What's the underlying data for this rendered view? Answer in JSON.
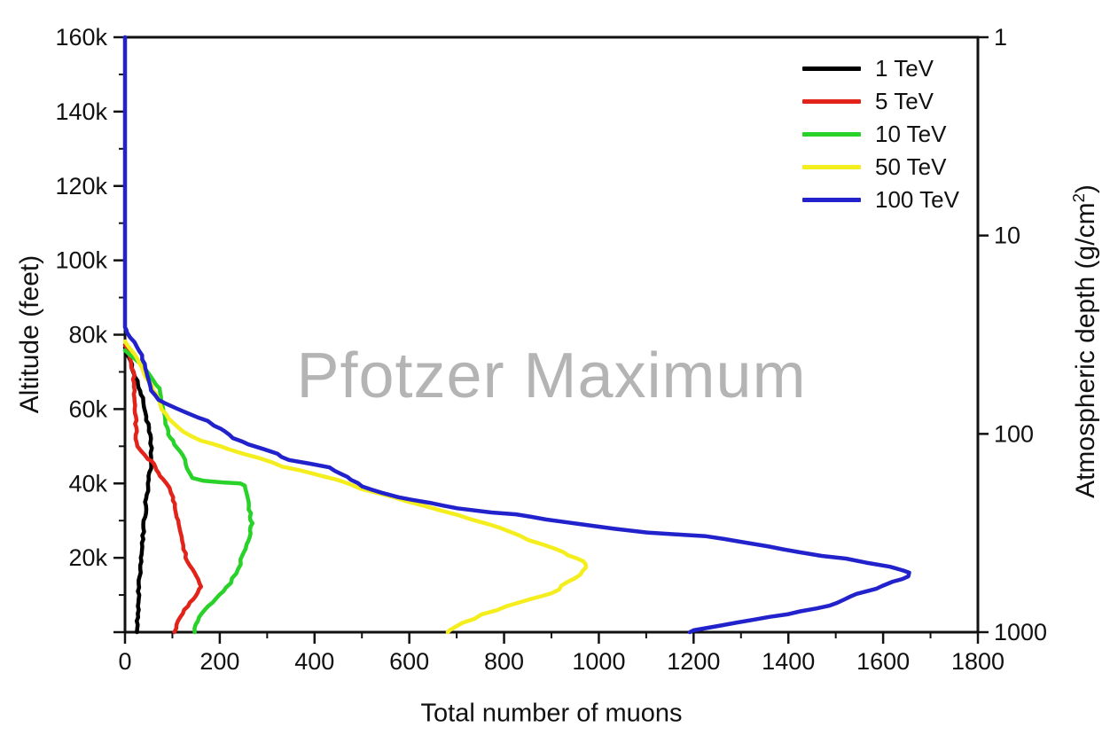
{
  "chart_data": {
    "type": "line",
    "watermark": "Pfotzer Maximum",
    "xlabel": "Total number of muons",
    "ylabel_left": "Altitude (feet)",
    "ylabel_right_prefix": "Atmospheric depth (g/cm",
    "ylabel_right_sup": "2",
    "ylabel_right_suffix": ")",
    "grid": false,
    "legend_position": "top-right",
    "x_axis": {
      "min": 0,
      "max": 1800,
      "major_step": 200,
      "minor_step": 100,
      "tick_labels": [
        "0",
        "200",
        "400",
        "600",
        "800",
        "1000",
        "1200",
        "1400",
        "1600",
        "1800"
      ]
    },
    "y_left_axis": {
      "min": 0,
      "max": 160000,
      "major_step": 20000,
      "minor_step": 10000,
      "ticks": [
        {
          "value": 20000,
          "label": "20k"
        },
        {
          "value": 40000,
          "label": "40k"
        },
        {
          "value": 60000,
          "label": "60k"
        },
        {
          "value": 80000,
          "label": "80k"
        },
        {
          "value": 100000,
          "label": "100k"
        },
        {
          "value": 120000,
          "label": "120k"
        },
        {
          "value": 140000,
          "label": "140k"
        },
        {
          "value": 160000,
          "label": "160k"
        }
      ]
    },
    "y_right_axis": {
      "scale": "log",
      "ticks": [
        {
          "value": "1",
          "position_frac": 0
        },
        {
          "value": "10",
          "position_frac": 0.3333
        },
        {
          "value": "100",
          "position_frac": 0.6667
        },
        {
          "value": "1000",
          "position_frac": 1
        }
      ]
    },
    "series": [
      {
        "name": "1 TeV",
        "color": "#000000",
        "points_muons_feet": [
          [
            0,
            76500
          ],
          [
            4,
            75000
          ],
          [
            10,
            73000
          ],
          [
            16,
            71000
          ],
          [
            23,
            68500
          ],
          [
            30,
            65800
          ],
          [
            36,
            63000
          ],
          [
            41,
            60500
          ],
          [
            45,
            58000
          ],
          [
            49,
            55000
          ],
          [
            53,
            52000
          ],
          [
            56,
            49500
          ],
          [
            55,
            47000
          ],
          [
            53,
            44000
          ],
          [
            50,
            41000
          ],
          [
            47,
            38000
          ],
          [
            45,
            36000
          ],
          [
            43,
            33000
          ],
          [
            41,
            30000
          ],
          [
            39,
            27000
          ],
          [
            37,
            24000
          ],
          [
            35,
            21000
          ],
          [
            33,
            18000
          ],
          [
            31,
            15000
          ],
          [
            29,
            12000
          ],
          [
            28,
            9000
          ],
          [
            27,
            6000
          ],
          [
            26,
            3000
          ],
          [
            25,
            0
          ]
        ]
      },
      {
        "name": "5 TeV",
        "color": "#e2231a",
        "points_muons_feet": [
          [
            0,
            77200
          ],
          [
            7,
            75000
          ],
          [
            13,
            72500
          ],
          [
            17,
            70000
          ],
          [
            19,
            67000
          ],
          [
            20,
            64000
          ],
          [
            21,
            61000
          ],
          [
            22,
            58000
          ],
          [
            23,
            55000
          ],
          [
            24,
            52000
          ],
          [
            27,
            50000
          ],
          [
            33,
            48800
          ],
          [
            40,
            47700
          ],
          [
            50,
            46600
          ],
          [
            57,
            46000
          ],
          [
            62,
            44500
          ],
          [
            70,
            42800
          ],
          [
            80,
            41200
          ],
          [
            88,
            40000
          ],
          [
            95,
            38800
          ],
          [
            98,
            37500
          ],
          [
            100,
            36300
          ],
          [
            104,
            34500
          ],
          [
            107,
            33000
          ],
          [
            110,
            31000
          ],
          [
            112,
            29000
          ],
          [
            115,
            27000
          ],
          [
            120,
            24500
          ],
          [
            125,
            22300
          ],
          [
            130,
            20000
          ],
          [
            137,
            18000
          ],
          [
            146,
            16000
          ],
          [
            155,
            14200
          ],
          [
            160,
            13000
          ],
          [
            157,
            11500
          ],
          [
            148,
            9800
          ],
          [
            138,
            8000
          ],
          [
            127,
            6000
          ],
          [
            117,
            4000
          ],
          [
            108,
            2000
          ],
          [
            104,
            0
          ]
        ]
      },
      {
        "name": "10 TeV",
        "color": "#28d228",
        "points_muons_feet": [
          [
            0,
            75800
          ],
          [
            20,
            73500
          ],
          [
            40,
            71000
          ],
          [
            55,
            68500
          ],
          [
            68,
            66500
          ],
          [
            74,
            64500
          ],
          [
            77,
            62000
          ],
          [
            80,
            59500
          ],
          [
            84,
            57000
          ],
          [
            88,
            55000
          ],
          [
            93,
            53200
          ],
          [
            100,
            51500
          ],
          [
            110,
            49500
          ],
          [
            120,
            47500
          ],
          [
            130,
            45000
          ],
          [
            136,
            43000
          ],
          [
            141,
            41500
          ],
          [
            165,
            40700
          ],
          [
            205,
            40300
          ],
          [
            243,
            40000
          ],
          [
            252,
            39400
          ],
          [
            257,
            37500
          ],
          [
            261,
            35000
          ],
          [
            262,
            33000
          ],
          [
            266,
            31000
          ],
          [
            268,
            29300
          ],
          [
            266,
            27500
          ],
          [
            262,
            25500
          ],
          [
            256,
            23500
          ],
          [
            252,
            21500
          ],
          [
            246,
            19500
          ],
          [
            238,
            17000
          ],
          [
            228,
            14500
          ],
          [
            215,
            12000
          ],
          [
            200,
            10000
          ],
          [
            185,
            8000
          ],
          [
            170,
            6000
          ],
          [
            158,
            4000
          ],
          [
            150,
            2000
          ],
          [
            147,
            0
          ]
        ]
      },
      {
        "name": "50 TeV",
        "color": "#f5ee1e",
        "points_muons_feet": [
          [
            0,
            78200
          ],
          [
            20,
            75000
          ],
          [
            40,
            70000
          ],
          [
            60,
            65000
          ],
          [
            75,
            61000
          ],
          [
            90,
            57500
          ],
          [
            120,
            54000
          ],
          [
            160,
            51500
          ],
          [
            200,
            50000
          ],
          [
            235,
            48500
          ],
          [
            280,
            47000
          ],
          [
            335,
            44500
          ],
          [
            400,
            42500
          ],
          [
            447,
            41000
          ],
          [
            500,
            38500
          ],
          [
            560,
            36500
          ],
          [
            634,
            34000
          ],
          [
            700,
            31500
          ],
          [
            770,
            29000
          ],
          [
            830,
            26000
          ],
          [
            880,
            23500
          ],
          [
            925,
            21500
          ],
          [
            955,
            19800
          ],
          [
            972,
            18300
          ],
          [
            968,
            16500
          ],
          [
            950,
            14500
          ],
          [
            925,
            12500
          ],
          [
            900,
            10500
          ],
          [
            855,
            8800
          ],
          [
            805,
            7000
          ],
          [
            755,
            4800
          ],
          [
            715,
            2500
          ],
          [
            685,
            500
          ],
          [
            681,
            0
          ]
        ]
      },
      {
        "name": "100 TeV",
        "color": "#2222cc",
        "points_muons_feet": [
          [
            0,
            160000
          ],
          [
            0,
            82000
          ],
          [
            6,
            80500
          ],
          [
            20,
            78000
          ],
          [
            35,
            74500
          ],
          [
            45,
            71000
          ],
          [
            50,
            68000
          ],
          [
            55,
            65000
          ],
          [
            70,
            62500
          ],
          [
            85,
            61500
          ],
          [
            110,
            60200
          ],
          [
            130,
            59000
          ],
          [
            155,
            57800
          ],
          [
            176,
            56800
          ],
          [
            190,
            55500
          ],
          [
            210,
            54000
          ],
          [
            230,
            52200
          ],
          [
            260,
            50500
          ],
          [
            290,
            49300
          ],
          [
            320,
            48000
          ],
          [
            345,
            46300
          ],
          [
            390,
            45300
          ],
          [
            430,
            44300
          ],
          [
            460,
            42500
          ],
          [
            480,
            41000
          ],
          [
            500,
            39200
          ],
          [
            540,
            37500
          ],
          [
            580,
            36300
          ],
          [
            640,
            34800
          ],
          [
            700,
            33300
          ],
          [
            770,
            32200
          ],
          [
            822,
            31700
          ],
          [
            890,
            30300
          ],
          [
            960,
            29000
          ],
          [
            1030,
            27800
          ],
          [
            1100,
            26800
          ],
          [
            1180,
            26200
          ],
          [
            1226,
            25800
          ],
          [
            1300,
            24300
          ],
          [
            1360,
            23000
          ],
          [
            1420,
            21600
          ],
          [
            1470,
            20500
          ],
          [
            1527,
            19800
          ],
          [
            1570,
            18700
          ],
          [
            1610,
            17600
          ],
          [
            1645,
            16600
          ],
          [
            1658,
            16000
          ],
          [
            1650,
            15000
          ],
          [
            1625,
            13600
          ],
          [
            1600,
            12400
          ],
          [
            1565,
            11000
          ],
          [
            1535,
            9600
          ],
          [
            1500,
            7800
          ],
          [
            1460,
            6400
          ],
          [
            1400,
            4800
          ],
          [
            1330,
            3400
          ],
          [
            1260,
            1800
          ],
          [
            1200,
            500
          ],
          [
            1192,
            0
          ]
        ]
      }
    ]
  }
}
